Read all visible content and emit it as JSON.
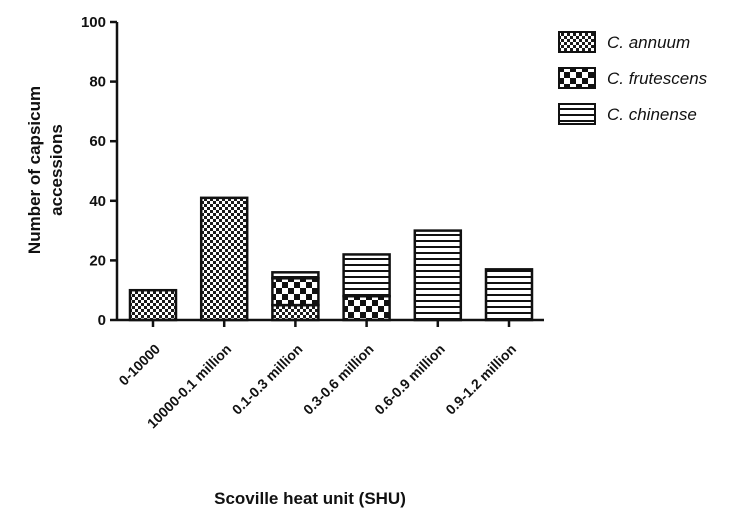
{
  "chart_data": {
    "type": "bar",
    "stacked": true,
    "categories": [
      "0-10000",
      "10000-0.1 million",
      "0.1-0.3 million",
      "0.3-0.6 million",
      "0.6-0.9 million",
      "0.9-1.2 million"
    ],
    "series": [
      {
        "name": "C. annuum",
        "values": [
          10,
          41,
          5,
          0,
          0,
          0
        ],
        "pattern": "dense-checker"
      },
      {
        "name": "C. frutescens",
        "values": [
          0,
          0,
          9,
          8,
          0,
          0
        ],
        "pattern": "large-checker"
      },
      {
        "name": "C. chinense",
        "values": [
          0,
          0,
          2,
          14,
          30,
          17
        ],
        "pattern": "horizontal-stripes"
      }
    ],
    "title": "",
    "xlabel": "Scoville heat unit (SHU)",
    "ylabel_lines": [
      "Number of capsicum",
      "accessions"
    ],
    "ylim": [
      0,
      100
    ],
    "yticks": [
      "0",
      "20",
      "40",
      "60",
      "80",
      "100"
    ],
    "grid": false,
    "legend_position": "top-right",
    "colors": {
      "ink": "#111111",
      "fill": "#ffffff"
    }
  }
}
